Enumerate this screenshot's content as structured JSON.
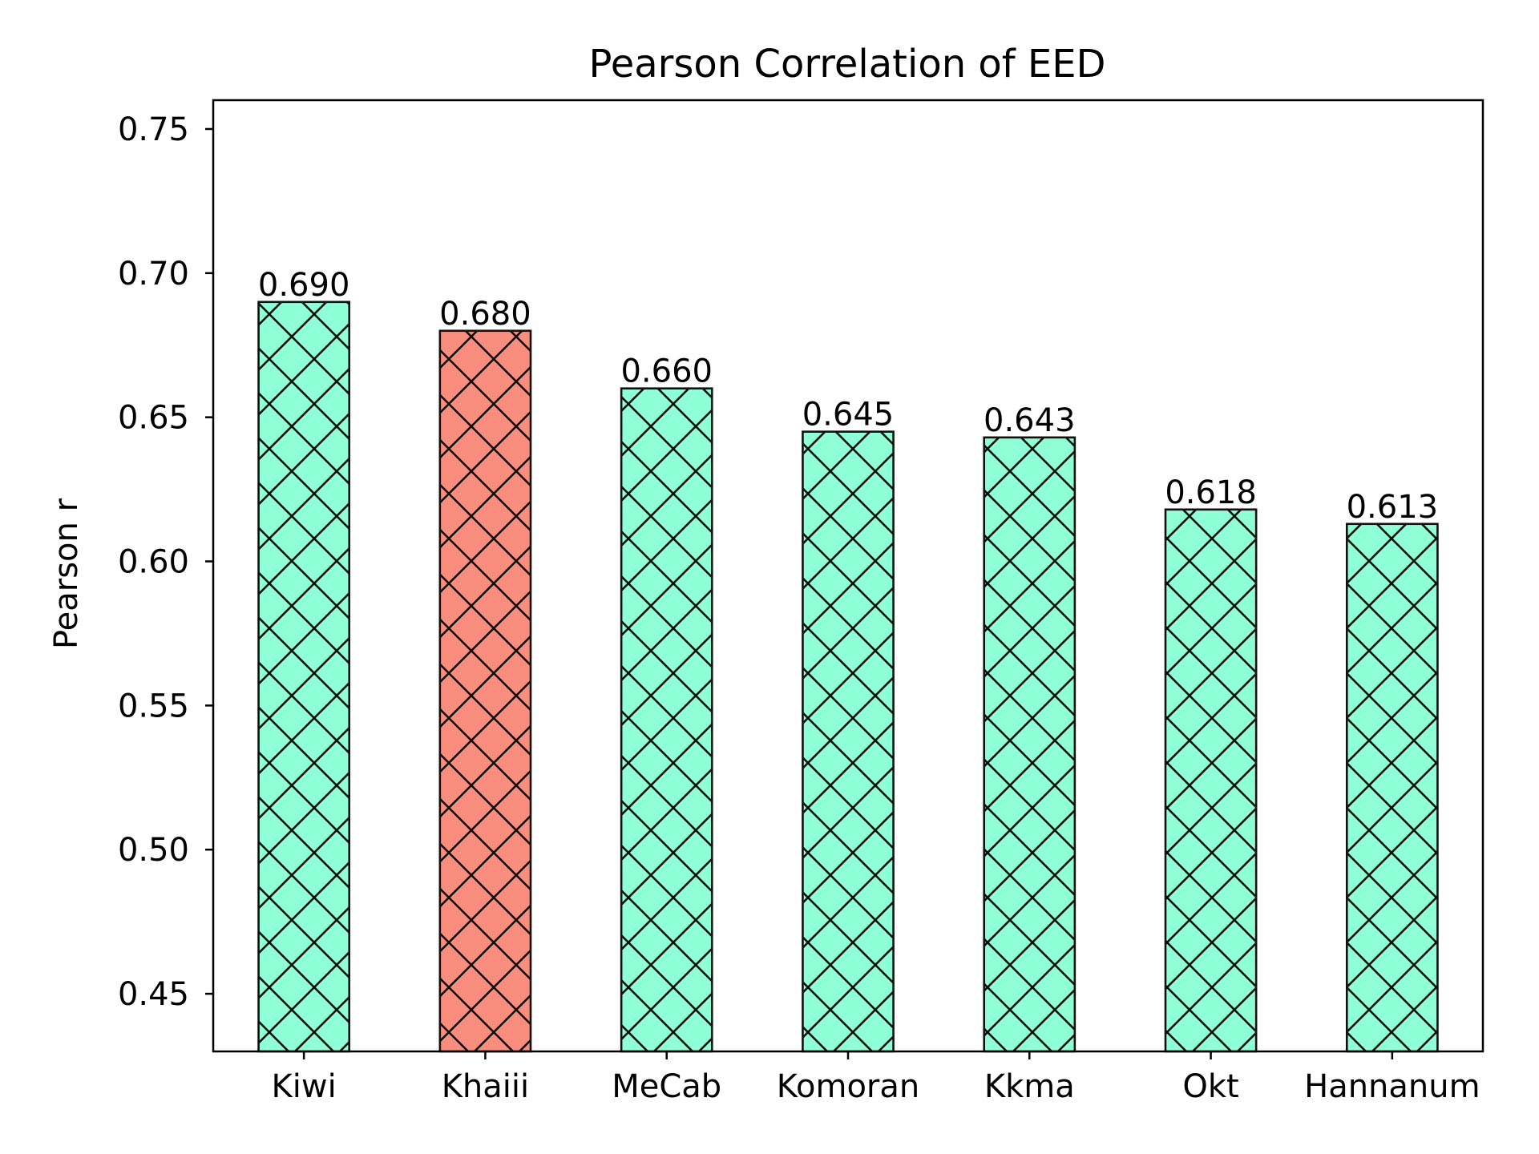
{
  "chart_data": {
    "type": "bar",
    "title": "Pearson Correlation of EED",
    "xlabel": "",
    "ylabel": "Pearson r",
    "ylim": [
      0.43,
      0.76
    ],
    "yticks": [
      "0.45",
      "0.50",
      "0.55",
      "0.60",
      "0.65",
      "0.70",
      "0.75"
    ],
    "categories": [
      "Kiwi",
      "Khaiii",
      "MeCab",
      "Komoran",
      "Kkma",
      "Okt",
      "Hannanum"
    ],
    "values": [
      0.69,
      0.68,
      0.66,
      0.645,
      0.643,
      0.618,
      0.613
    ],
    "value_labels": [
      "0.690",
      "0.680",
      "0.660",
      "0.645",
      "0.643",
      "0.618",
      "0.613"
    ],
    "bar_colors": [
      "#8fffd8",
      "#fa8e7e",
      "#8fffd8",
      "#8fffd8",
      "#8fffd8",
      "#8fffd8",
      "#8fffd8"
    ],
    "edge_color": "#111111",
    "hatch": "cross-diagonal",
    "grid": false,
    "legend": "none"
  }
}
